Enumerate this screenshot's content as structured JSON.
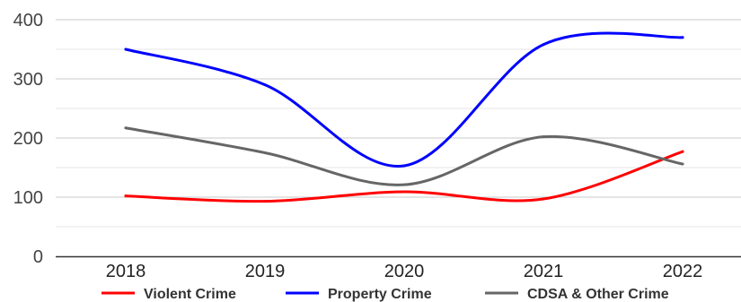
{
  "chart_data": {
    "type": "line",
    "categories": [
      "2018",
      "2019",
      "2020",
      "2021",
      "2022"
    ],
    "ylim": [
      0,
      400
    ],
    "yticks": [
      0,
      100,
      200,
      300,
      400
    ],
    "grid": true,
    "legend_position": "bottom",
    "series": [
      {
        "name": "Violent Crime",
        "color": "#ff0000",
        "values": [
          102,
          93,
          109,
          97,
          177
        ]
      },
      {
        "name": "Property Crime",
        "color": "#0000ff",
        "values": [
          350,
          290,
          153,
          358,
          370
        ]
      },
      {
        "name": "CDSA & Other Crime",
        "color": "#666666",
        "values": [
          217,
          175,
          121,
          202,
          156
        ]
      }
    ]
  }
}
